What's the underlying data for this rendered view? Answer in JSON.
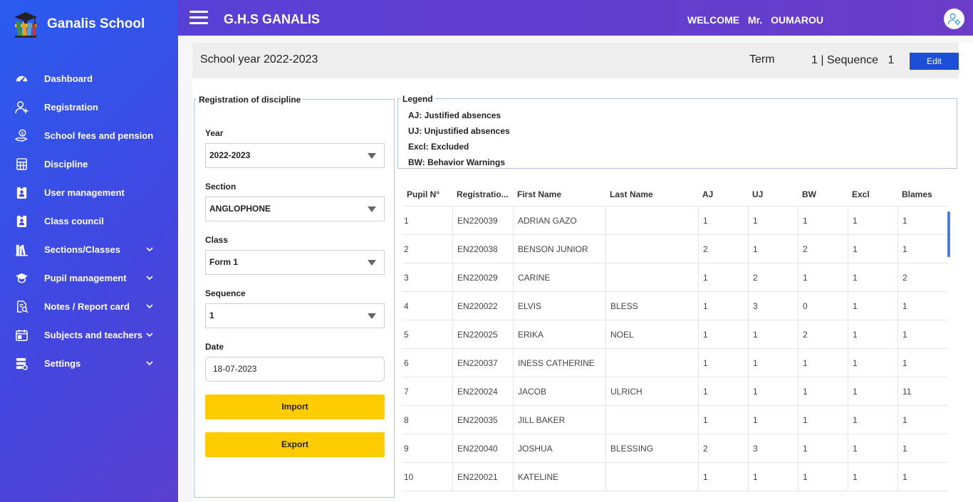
{
  "brand": {
    "name": "Ganalis School"
  },
  "sidebar": {
    "items": [
      {
        "label": "Dashboard",
        "icon": "dashboard-gauge-icon",
        "has_submenu": false
      },
      {
        "label": "Registration",
        "icon": "user-plus-icon",
        "has_submenu": false
      },
      {
        "label": "School fees and pension",
        "icon": "money-hand-icon",
        "has_submenu": false
      },
      {
        "label": "Discipline",
        "icon": "calculator-icon",
        "has_submenu": false
      },
      {
        "label": "User management",
        "icon": "id-badge-icon",
        "has_submenu": false
      },
      {
        "label": "Class council",
        "icon": "id-badge-icon",
        "has_submenu": false
      },
      {
        "label": "Sections/Classes",
        "icon": "books-icon",
        "has_submenu": true
      },
      {
        "label": "Pupil management",
        "icon": "graduation-cap-icon",
        "has_submenu": true
      },
      {
        "label": "Notes / Report card",
        "icon": "document-search-icon",
        "has_submenu": true
      },
      {
        "label": "Subjects and teachers",
        "icon": "calendar-icon",
        "has_submenu": true
      },
      {
        "label": "Settings",
        "icon": "server-settings-icon",
        "has_submenu": true
      }
    ]
  },
  "topbar": {
    "school": "G.H.S GANALIS",
    "welcome": "WELCOME",
    "title": "Mr.",
    "username": "OUMAROU"
  },
  "yearbar": {
    "school_year": "School year 2022-2023",
    "term_label": "Term",
    "term_info": "1 | Sequence   1",
    "edit_label": "Edit"
  },
  "form": {
    "legend": "Registration of discipline",
    "year_label": "Year",
    "year_value": "2022-2023",
    "section_label": "Section",
    "section_value": "ANGLOPHONE",
    "class_label": "Class",
    "class_value": "Form 1",
    "sequence_label": "Sequence",
    "sequence_value": "1",
    "date_label": "Date",
    "date_value": "18-07-2023",
    "import_label": "Import",
    "export_label": "Export"
  },
  "legend": {
    "title": "Legend",
    "items": [
      "AJ: Justified absences",
      "UJ: Unjustified absences",
      "Excl: Excluded",
      "BW: Behavior Warnings"
    ]
  },
  "table": {
    "headers": [
      "Pupil N°",
      "Registratio...",
      "First Name",
      "Last Name",
      "AJ",
      "UJ",
      "BW",
      "Excl",
      "Blames"
    ],
    "rows": [
      [
        "1",
        "EN220039",
        "ADRIAN GAZO",
        "",
        "1",
        "1",
        "1",
        "1",
        "1"
      ],
      [
        "2",
        "EN220038",
        "BENSON JUNIOR",
        "",
        "2",
        "1",
        "2",
        "1",
        "1"
      ],
      [
        "3",
        "EN220029",
        "CARINE",
        "",
        "1",
        "2",
        "1",
        "1",
        "2"
      ],
      [
        "4",
        "EN220022",
        "ELVIS",
        "BLESS",
        "1",
        "3",
        "0",
        "1",
        "1"
      ],
      [
        "5",
        "EN220025",
        "ERIKA",
        "NOEL",
        "1",
        "1",
        "2",
        "1",
        "1"
      ],
      [
        "6",
        "EN220037",
        "INESS CATHERINE",
        "",
        "1",
        "1",
        "1",
        "1",
        "1"
      ],
      [
        "7",
        "EN220024",
        "JACOB",
        "ULRICH",
        "1",
        "1",
        "1",
        "1",
        "11"
      ],
      [
        "8",
        "EN220035",
        "JILL BAKER",
        "",
        "1",
        "1",
        "1",
        "1",
        "1"
      ],
      [
        "9",
        "EN220040",
        "JOSHUA",
        "BLESSING",
        "2",
        "3",
        "1",
        "1",
        "1"
      ],
      [
        "10",
        "EN220021",
        "KATELINE",
        "",
        "1",
        "1",
        "1",
        "1",
        "1"
      ]
    ]
  }
}
